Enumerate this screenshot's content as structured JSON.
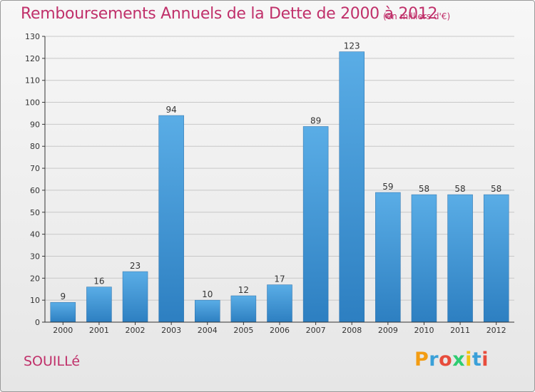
{
  "title": "Remboursements Annuels de la Dette de 2000 à 2012",
  "subtitle": "(en milliers d'€)",
  "commune": "SOUILLé",
  "logo": {
    "text": "Proxiti",
    "letters": [
      "P",
      "r",
      "o",
      "x",
      "i",
      "t",
      "i"
    ],
    "colors": [
      "#f39c12",
      "#3aa0d8",
      "#e74c3c",
      "#2ecc71",
      "#f1c40f",
      "#3aa0d8",
      "#e74c3c"
    ]
  },
  "chart_data": {
    "type": "bar",
    "title": "Remboursements Annuels de la Dette de 2000 à 2012",
    "subtitle": "(en milliers d'€)",
    "categories": [
      "2000",
      "2001",
      "2002",
      "2003",
      "2004",
      "2005",
      "2006",
      "2007",
      "2008",
      "2009",
      "2010",
      "2011",
      "2012"
    ],
    "values": [
      9,
      16,
      23,
      94,
      10,
      12,
      17,
      89,
      123,
      59,
      58,
      58,
      58
    ],
    "ylim": [
      0,
      130
    ],
    "yticks": [
      0,
      10,
      20,
      30,
      40,
      50,
      60,
      70,
      80,
      90,
      100,
      110,
      120,
      130
    ],
    "grid": true,
    "colors": {
      "bar_top": "#5aade6",
      "bar_bottom": "#2d7fc1",
      "title": "#c0306a",
      "grid": "#c8c8c8",
      "axis": "#333333"
    }
  }
}
